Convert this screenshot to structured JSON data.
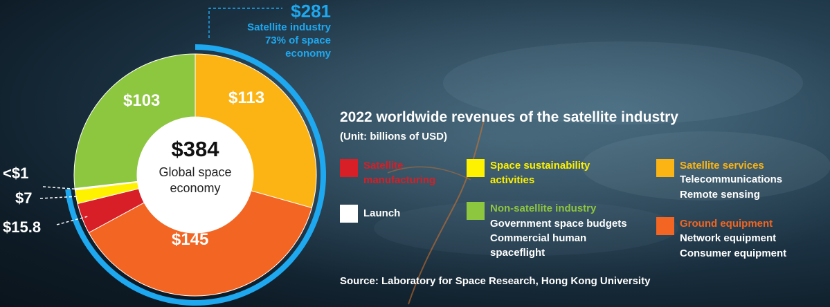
{
  "callout": {
    "amount": "$281",
    "line1": "Satellite industry",
    "line2": "73% of space",
    "line3": "economy"
  },
  "center": {
    "amount": "$384",
    "line1": "Global space",
    "line2": "economy"
  },
  "outer_labels": {
    "launch": "<$1",
    "sustainability": "$7",
    "manufacturing": "$15.8"
  },
  "title": "2022 worldwide revenues of the satellite industry",
  "unit": "(Unit: billions of USD)",
  "legend": {
    "manufacturing": {
      "title1": "Satellite",
      "title2": "manufacturing"
    },
    "sustainability": {
      "title1": "Space sustainability",
      "title2": "activities"
    },
    "services": {
      "title": "Satellite services",
      "sub1": "Telecommunications",
      "sub2": "Remote sensing"
    },
    "launch": {
      "title": "Launch"
    },
    "non_satellite": {
      "title": "Non-satellite industry",
      "sub1": "Government space budgets",
      "sub2": "Commercial human",
      "sub3": "spaceflight"
    },
    "ground": {
      "title": "Ground equipment",
      "sub1": "Network equipment",
      "sub2": "Consumer equipment"
    }
  },
  "source": "Source: Laboratory for Space Research, Hong Kong University",
  "colors": {
    "satellite_services": "#fbb414",
    "ground_equipment": "#f26522",
    "satellite_manufacturing": "#d81e26",
    "launch": "#ffffff",
    "space_sustainability": "#fff200",
    "non_satellite_industry": "#8dc63f",
    "satellite_ring": "#1ea8f0"
  },
  "chart_data": {
    "type": "pie",
    "title": "2022 worldwide revenues of the satellite industry",
    "unit": "billions of USD",
    "total": 384,
    "satellite_industry_total": 281,
    "satellite_industry_share": 0.73,
    "slices": [
      {
        "name": "Satellite services",
        "value": 113,
        "label": "$113"
      },
      {
        "name": "Ground equipment",
        "value": 145,
        "label": "$145"
      },
      {
        "name": "Satellite manufacturing",
        "value": 15.8,
        "label": "$15.8"
      },
      {
        "name": "Space sustainability activities",
        "value": 7,
        "label": "$7"
      },
      {
        "name": "Launch",
        "value": 0.8,
        "label": "<$1"
      },
      {
        "name": "Non-satellite industry",
        "value": 103,
        "label": "$103"
      }
    ]
  }
}
